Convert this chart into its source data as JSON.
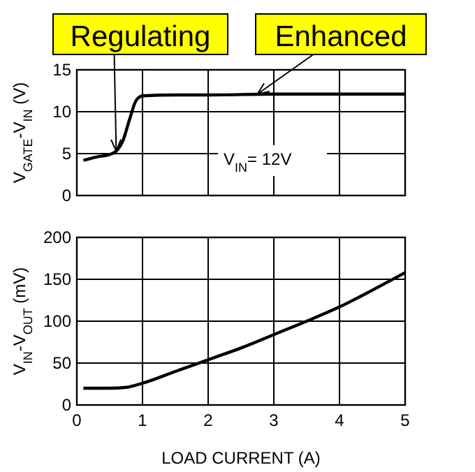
{
  "chart_data": [
    {
      "type": "line",
      "ylabel": "V$_{GATE}$-V$_{IN}$ (V)",
      "xlim": [
        0,
        5
      ],
      "xticks": [
        0,
        1,
        2,
        3,
        4,
        5
      ],
      "ylim": [
        0,
        15
      ],
      "yticks": [
        0,
        5,
        10,
        15
      ],
      "grid": true,
      "tick_labels": "y",
      "series": [
        {
          "color": "#000000",
          "x": [
            0.1,
            0.3,
            0.5,
            0.6,
            0.7,
            0.8,
            0.9,
            1.0,
            1.5,
            2,
            3,
            4,
            5
          ],
          "values": [
            4.2,
            4.6,
            4.9,
            5.3,
            6.5,
            9,
            11.3,
            11.9,
            12,
            12,
            12.1,
            12.1,
            12.1
          ]
        }
      ],
      "annotations": [
        {
          "text": "Regulating",
          "x": 0.6,
          "y": 5.3
        },
        {
          "text": "Enhanced",
          "x": 2.75,
          "y": 12.1
        },
        "V$_{IN}$= 12V"
      ]
    },
    {
      "type": "line",
      "xlabel": "LOAD CURRENT (A)",
      "ylabel": "V$_{IN}$-V$_{OUT}$ (mV)",
      "xlim": [
        0,
        5
      ],
      "xticks": [
        0,
        1,
        2,
        3,
        4,
        5
      ],
      "ylim": [
        0,
        200
      ],
      "yticks": [
        0,
        50,
        100,
        150,
        200
      ],
      "grid": true,
      "series": [
        {
          "color": "#000000",
          "x": [
            0.1,
            0.5,
            0.75,
            1,
            1.5,
            2,
            2.5,
            3,
            3.5,
            4,
            4.5,
            5
          ],
          "values": [
            20,
            20,
            21,
            26,
            40,
            54,
            68,
            84,
            100,
            117,
            137,
            158
          ]
        }
      ]
    }
  ]
}
